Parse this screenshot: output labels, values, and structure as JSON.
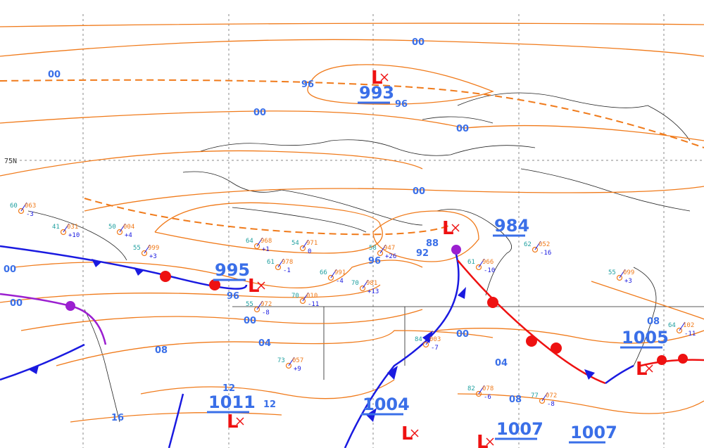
{
  "colors": {
    "isobar": "#f07a1a",
    "cold_front": "#1a1ae0",
    "warm_front": "#ee1111",
    "occluded": "#9b1fd0",
    "low": "#ee1111",
    "label": "#3a6fe8",
    "coast": "#222222",
    "grid": "#888888"
  },
  "latitude_label": "75N",
  "lows": [
    {
      "symbol": "L",
      "pressure": "993"
    },
    {
      "symbol": "L",
      "pressure": "984"
    },
    {
      "symbol": "L",
      "pressure": "995"
    },
    {
      "symbol": "L",
      "pressure": "1005"
    },
    {
      "symbol": "L",
      "pressure": "1011"
    },
    {
      "symbol": "L",
      "pressure": "1004"
    },
    {
      "symbol": "L",
      "pressure": "1007"
    }
  ],
  "extra_center_label": "1007",
  "isobar_labels": [
    "00",
    "00",
    "96",
    "96",
    "00",
    "00",
    "00",
    "96",
    "92",
    "88",
    "00",
    "00",
    "96",
    "00",
    "04",
    "08",
    "12",
    "12",
    "16",
    "00",
    "04",
    "08",
    "08"
  ],
  "stations": [
    {
      "t": "41",
      "p": "031",
      "d": "+10"
    },
    {
      "t": "50",
      "p": "004",
      "d": "+4"
    },
    {
      "t": "55",
      "p": "999",
      "d": "+3"
    },
    {
      "t": "64",
      "p": "968",
      "d": "+1"
    },
    {
      "t": "61",
      "p": "978",
      "d": "-1"
    },
    {
      "t": "55",
      "p": "972",
      "d": "-8"
    },
    {
      "t": "70",
      "p": "010",
      "d": "-11"
    },
    {
      "t": "66",
      "p": "991",
      "d": "-4"
    },
    {
      "t": "54",
      "p": "971",
      "d": "0"
    },
    {
      "t": "70",
      "p": "981",
      "d": "+13"
    },
    {
      "t": "58",
      "p": "947",
      "d": "+26"
    },
    {
      "t": "61",
      "p": "966",
      "d": "-10"
    },
    {
      "t": "62",
      "p": "052",
      "d": "-16"
    },
    {
      "t": "55",
      "p": "099",
      "d": "+3"
    },
    {
      "t": "64",
      "p": "102",
      "d": "-11"
    },
    {
      "t": "84",
      "p": "003",
      "d": "-7"
    },
    {
      "t": "82",
      "p": "078",
      "d": "-6"
    },
    {
      "t": "77",
      "p": "072",
      "d": "-8"
    },
    {
      "t": "73",
      "p": "057",
      "d": "+9"
    },
    {
      "t": "60",
      "p": "063",
      "d": "-3"
    }
  ]
}
